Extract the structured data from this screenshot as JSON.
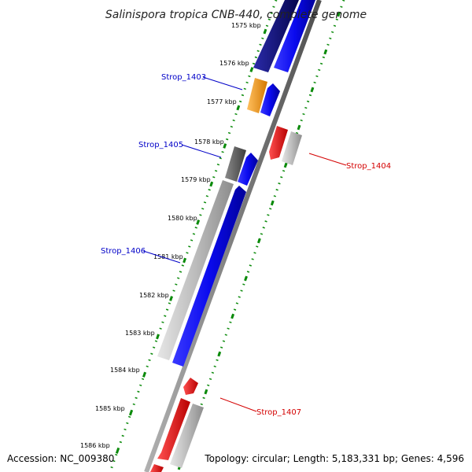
{
  "title": "Salinispora tropica CNB-440, complete genome",
  "footer": {
    "accession": "Accession: NC_009380",
    "topology": "Topology: circular; Length: 5,183,331 bp; Genes: 4,596"
  },
  "ruler_labels": [
    "1575 kbp",
    "1576 kbp",
    "1577 kbp",
    "1578 kbp",
    "1579 kbp",
    "1580 kbp",
    "1581 kbp",
    "1582 kbp",
    "1583 kbp",
    "1584 kbp",
    "1585 kbp",
    "1586 kbp"
  ],
  "gene_labels": [
    {
      "name": "Strop_1403",
      "color": "#0000c8"
    },
    {
      "name": "Strop_1405",
      "color": "#0000c8"
    },
    {
      "name": "Strop_1406",
      "color": "#0000c8"
    },
    {
      "name": "Strop_1404",
      "color": "#d40000"
    },
    {
      "name": "Strop_1407",
      "color": "#d40000"
    }
  ],
  "colors": {
    "backbone": "#7a7a7a",
    "tick_green": "#0a8a0a",
    "forward_blue": "#0a0aee",
    "forward_navy": "#0a0a80",
    "cds_grey": "#b8b8b8",
    "cds_darkgrey": "#6a6a6a",
    "cds_orange": "#f39a1a",
    "reverse_red": "#ee1111"
  }
}
